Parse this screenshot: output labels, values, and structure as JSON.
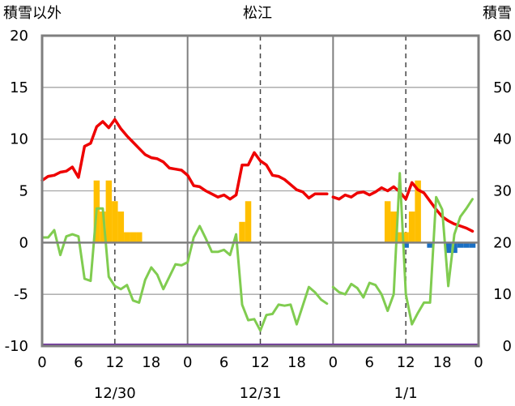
{
  "chart_data": {
    "type": "line",
    "title": "松江",
    "ylabel_left": "積雪以外",
    "ylabel_right": "積雪",
    "ylim_left": [
      -10,
      20
    ],
    "ylim_right": [
      0,
      60
    ],
    "yticks_left": [
      "20",
      "15",
      "10",
      "5",
      "0",
      "-5",
      "-10"
    ],
    "yticks_right": [
      "60",
      "50",
      "40",
      "30",
      "20",
      "10",
      "0"
    ],
    "xlim_hours": [
      0,
      72
    ],
    "xtick_labels": [
      "0",
      "6",
      "12",
      "18",
      "0",
      "6",
      "12",
      "18",
      "0",
      "6",
      "12",
      "18",
      "0"
    ],
    "date_labels": [
      "12/30",
      "12/31",
      "1/1"
    ],
    "series": [
      {
        "name": "red",
        "color": "#ee0000",
        "hours": [
          0,
          1,
          2,
          3,
          4,
          5,
          6,
          7,
          8,
          9,
          10,
          11,
          12,
          13,
          14,
          15,
          16,
          17,
          18,
          19,
          20,
          21,
          22,
          23,
          24,
          25,
          26,
          27,
          28,
          29,
          30,
          31,
          32,
          33,
          34,
          35,
          36,
          37,
          38,
          39,
          40,
          41,
          42,
          43,
          44,
          45,
          46,
          47,
          48,
          49,
          50,
          51,
          52,
          53,
          54,
          55,
          56,
          57,
          58,
          59,
          60,
          61,
          62,
          63,
          64,
          65,
          66,
          67,
          68,
          69,
          70,
          71
        ],
        "values": [
          6.0,
          6.4,
          6.5,
          6.8,
          6.9,
          7.3,
          6.3,
          9.3,
          9.6,
          11.2,
          11.7,
          11.1,
          11.9,
          11.0,
          10.3,
          9.7,
          9.1,
          8.5,
          8.2,
          8.1,
          7.8,
          7.2,
          7.1,
          7.0,
          6.5,
          5.5,
          5.4,
          5.0,
          4.7,
          4.4,
          4.6,
          4.2,
          4.6,
          7.5,
          7.5,
          8.7,
          7.9,
          7.5,
          6.5,
          6.4,
          6.1,
          5.6,
          5.1,
          4.9,
          4.3,
          4.7,
          4.7,
          4.7,
          4.4,
          4.2,
          4.6,
          4.4,
          4.8,
          4.9,
          4.6,
          4.9,
          5.3,
          5.0,
          5.4,
          4.9,
          4.2,
          5.8,
          5.1,
          4.8,
          4.0,
          3.2,
          2.5,
          2.1,
          1.8,
          1.6,
          1.4,
          1.1
        ],
        "gaps_after_hour": [
          47
        ]
      },
      {
        "name": "green",
        "color": "#80cc50",
        "hours": [
          0,
          1,
          2,
          3,
          4,
          5,
          6,
          7,
          8,
          9,
          10,
          11,
          12,
          13,
          14,
          15,
          16,
          17,
          18,
          19,
          20,
          21,
          22,
          23,
          24,
          25,
          26,
          27,
          28,
          29,
          30,
          31,
          32,
          33,
          34,
          35,
          36,
          37,
          38,
          39,
          40,
          41,
          42,
          43,
          44,
          45,
          46,
          47,
          48,
          49,
          50,
          51,
          52,
          53,
          54,
          55,
          56,
          57,
          58,
          59,
          60,
          61,
          62,
          63,
          64,
          65,
          66,
          67,
          68,
          69,
          70,
          71
        ],
        "values": [
          0.5,
          0.5,
          1.2,
          -1.2,
          0.6,
          0.8,
          0.6,
          -3.5,
          -3.7,
          3.3,
          3.3,
          -3.3,
          -4.2,
          -4.5,
          -4.1,
          -5.6,
          -5.8,
          -3.6,
          -2.4,
          -3.1,
          -4.5,
          -3.3,
          -2.1,
          -2.2,
          -1.9,
          0.5,
          1.6,
          0.4,
          -0.9,
          -0.9,
          -0.7,
          -1.2,
          0.8,
          -6.0,
          -7.5,
          -7.4,
          -8.5,
          -7.0,
          -6.9,
          -6.0,
          -6.1,
          -6.0,
          -7.9,
          -6.1,
          -4.3,
          -4.8,
          -5.5,
          -5.9,
          -4.3,
          -4.8,
          -5.0,
          -4.0,
          -4.4,
          -5.3,
          -3.9,
          -4.1,
          -5.0,
          -6.6,
          -5.0,
          6.7,
          -5.0,
          -7.9,
          -6.8,
          -5.8,
          -5.8,
          4.4,
          3.2,
          -4.2,
          0.8,
          2.5,
          3.3,
          4.2
        ],
        "gaps_after_hour": [
          47
        ]
      }
    ],
    "bars": [
      {
        "name": "orange",
        "color": "#ffbf00",
        "hours": [
          9,
          10,
          11,
          12,
          13,
          14,
          15,
          16,
          33,
          34,
          57,
          58,
          59,
          60,
          61,
          62
        ],
        "values": [
          6.0,
          3.0,
          6.0,
          4.0,
          3.0,
          1.0,
          1.0,
          1.0,
          2.0,
          4.0,
          4.0,
          3.0,
          1.0,
          1.0,
          3.0,
          6.0
        ]
      },
      {
        "name": "blue",
        "color": "#1a6fc4",
        "hours": [
          60,
          64,
          67,
          68,
          69,
          70,
          71
        ],
        "values": [
          -0.5,
          -0.5,
          -1.0,
          -1.0,
          -0.5,
          -0.5,
          -0.5
        ]
      }
    ],
    "snow_depth_right_axis": {
      "name": "purple",
      "color": "#7030a0",
      "value": 0
    },
    "grid": {
      "horizontal_every": 5,
      "dashed_verticals_at_hours": [
        12,
        36,
        60
      ],
      "day_separators_at_hours": [
        24,
        48
      ]
    },
    "legend": "none"
  }
}
